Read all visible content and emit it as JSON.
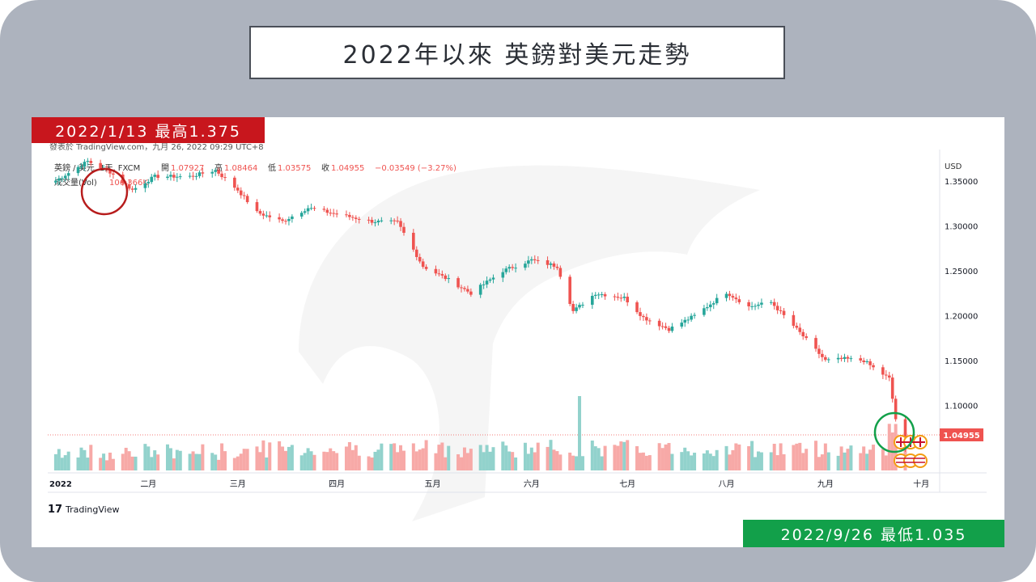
{
  "title": "2022年以來 英鎊對美元走勢",
  "annotations": {
    "high": "2022/1/13 最高1.375",
    "low": "2022/9/26 最低1.035"
  },
  "tradingview": {
    "source_line": "發表於 TradingView.com，九月 26, 2022 09:29 UTC+8",
    "symbol": "英鎊 / 美元, 1天, FXCM",
    "ohlc": {
      "open_label": "開",
      "open": "1.07927",
      "high_label": "高",
      "high": "1.08464",
      "low_label": "低",
      "low": "1.03575",
      "close_label": "收",
      "close": "1.04955",
      "change": "−0.03549 (−3.27%)"
    },
    "volume_label": "成交量(Vol)",
    "volume_value": "106.366K",
    "currency": "USD",
    "last_price": "1.04955",
    "logo_text": "TradingView"
  },
  "colors": {
    "up": "#26a69a",
    "down": "#ef5350",
    "volume_up": "#92d2cc",
    "volume_down": "#f7a9a7",
    "high_badge": "#c8161d",
    "low_badge": "#12a04a",
    "frame": "#adb3be"
  },
  "chart_data": {
    "type": "candlestick",
    "x_range": [
      "2022-01-01",
      "2022-10-05"
    ],
    "ylim": [
      1.025,
      1.385
    ],
    "y_ticks": [
      "1.35000",
      "1.30000",
      "1.25000",
      "1.20000",
      "1.15000",
      "1.10000"
    ],
    "y_tick_values": [
      1.35,
      1.3,
      1.25,
      1.2,
      1.15,
      1.1
    ],
    "x_ticks": [
      {
        "label": "2022",
        "date": "2022-01-01"
      },
      {
        "label": "二月",
        "date": "2022-02-01"
      },
      {
        "label": "三月",
        "date": "2022-03-01"
      },
      {
        "label": "四月",
        "date": "2022-04-01"
      },
      {
        "label": "五月",
        "date": "2022-05-01"
      },
      {
        "label": "六月",
        "date": "2022-06-01"
      },
      {
        "label": "七月",
        "date": "2022-07-01"
      },
      {
        "label": "八月",
        "date": "2022-08-01"
      },
      {
        "label": "九月",
        "date": "2022-09-01"
      },
      {
        "label": "十月",
        "date": "2022-10-01"
      }
    ],
    "series": [
      {
        "name": "英鎊 / 美元",
        "points": [
          [
            "2022-01-01",
            1.346
          ],
          [
            "2022-01-13",
            1.372
          ],
          [
            "2022-01-20",
            1.36
          ],
          [
            "2022-01-27",
            1.34
          ],
          [
            "2022-02-03",
            1.355
          ],
          [
            "2022-02-14",
            1.355
          ],
          [
            "2022-02-22",
            1.362
          ],
          [
            "2022-03-01",
            1.34
          ],
          [
            "2022-03-07",
            1.315
          ],
          [
            "2022-03-15",
            1.305
          ],
          [
            "2022-03-23",
            1.32
          ],
          [
            "2022-04-01",
            1.313
          ],
          [
            "2022-04-12",
            1.305
          ],
          [
            "2022-04-20",
            1.304
          ],
          [
            "2022-04-28",
            1.255
          ],
          [
            "2022-05-06",
            1.24
          ],
          [
            "2022-05-13",
            1.225
          ],
          [
            "2022-05-23",
            1.25
          ],
          [
            "2022-06-01",
            1.262
          ],
          [
            "2022-06-09",
            1.255
          ],
          [
            "2022-06-14",
            1.205
          ],
          [
            "2022-06-21",
            1.225
          ],
          [
            "2022-06-30",
            1.22
          ],
          [
            "2022-07-06",
            1.198
          ],
          [
            "2022-07-14",
            1.185
          ],
          [
            "2022-07-22",
            1.2
          ],
          [
            "2022-08-01",
            1.226
          ],
          [
            "2022-08-08",
            1.21
          ],
          [
            "2022-08-15",
            1.215
          ],
          [
            "2022-08-23",
            1.185
          ],
          [
            "2022-09-01",
            1.15
          ],
          [
            "2022-09-07",
            1.152
          ],
          [
            "2022-09-13",
            1.15
          ],
          [
            "2022-09-16",
            1.142
          ],
          [
            "2022-09-21",
            1.13
          ],
          [
            "2022-09-23",
            1.085
          ],
          [
            "2022-09-26",
            1.05
          ]
        ]
      }
    ],
    "volume": {
      "spike_date": "2022-06-16"
    }
  }
}
